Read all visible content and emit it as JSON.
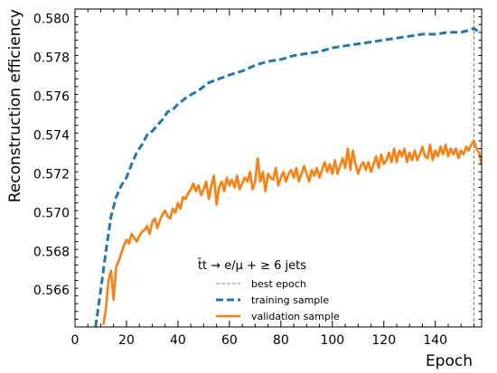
{
  "chart_data": {
    "type": "line",
    "xlabel": "Epoch",
    "ylabel": "Reconstruction efficiency",
    "xlim": [
      0,
      158
    ],
    "ylim": [
      0.5641,
      0.5805
    ],
    "xticks": [
      0,
      20,
      40,
      60,
      80,
      100,
      120,
      140
    ],
    "yticks": [
      0.566,
      0.568,
      0.57,
      0.572,
      0.574,
      0.576,
      0.578,
      0.58
    ],
    "ytick_labels": [
      "0.566",
      "0.568",
      "0.570",
      "0.572",
      "0.574",
      "0.576",
      "0.578",
      "0.580"
    ],
    "grid": false,
    "legend_placement": "lower-center",
    "legend_title": "t̄t → e/μ + ≥ 6 jets",
    "best_epoch": 155,
    "best_epoch_label": "best epoch",
    "colors": {
      "training": "#1f77b4",
      "validation": "#ff7f0e",
      "best_epoch": "#808080"
    },
    "series": [
      {
        "name": "training sample",
        "style": "dashed",
        "x": [
          8,
          10,
          12,
          14,
          16,
          18,
          20,
          22,
          24,
          26,
          28,
          30,
          32,
          34,
          36,
          38,
          40,
          44,
          48,
          52,
          56,
          60,
          65,
          70,
          75,
          80,
          85,
          90,
          95,
          100,
          105,
          110,
          115,
          120,
          125,
          130,
          135,
          140,
          145,
          150,
          153,
          155,
          156,
          158
        ],
        "y": [
          0.5641,
          0.566,
          0.568,
          0.5698,
          0.5708,
          0.5714,
          0.5718,
          0.5725,
          0.5731,
          0.5735,
          0.574,
          0.5742,
          0.5745,
          0.5748,
          0.5752,
          0.5753,
          0.5756,
          0.576,
          0.5763,
          0.5767,
          0.5769,
          0.5771,
          0.5773,
          0.5776,
          0.5778,
          0.5779,
          0.5781,
          0.5782,
          0.5783,
          0.5785,
          0.5786,
          0.5787,
          0.5788,
          0.5789,
          0.579,
          0.5791,
          0.5792,
          0.5792,
          0.5793,
          0.5793,
          0.5794,
          0.5795,
          0.5794,
          0.5793
        ]
      },
      {
        "name": "validation sample",
        "style": "solid",
        "x": [
          11,
          12,
          13,
          14,
          15,
          16,
          17,
          18,
          19,
          20,
          21,
          22,
          23,
          24,
          25,
          26,
          27,
          28,
          29,
          30,
          31,
          32,
          33,
          34,
          35,
          36,
          37,
          38,
          39,
          40,
          41,
          42,
          43,
          44,
          45,
          46,
          47,
          48,
          49,
          50,
          51,
          52,
          53,
          54,
          55,
          56,
          57,
          58,
          59,
          60,
          61,
          62,
          63,
          64,
          65,
          66,
          67,
          68,
          69,
          70,
          71,
          72,
          73,
          74,
          75,
          76,
          77,
          78,
          79,
          80,
          81,
          82,
          83,
          84,
          85,
          86,
          87,
          88,
          89,
          90,
          91,
          92,
          93,
          94,
          95,
          96,
          97,
          98,
          99,
          100,
          101,
          102,
          103,
          104,
          105,
          106,
          107,
          108,
          109,
          110,
          111,
          112,
          113,
          114,
          115,
          116,
          117,
          118,
          119,
          120,
          121,
          122,
          123,
          124,
          125,
          126,
          127,
          128,
          129,
          130,
          131,
          132,
          133,
          134,
          135,
          136,
          137,
          138,
          139,
          140,
          141,
          142,
          143,
          144,
          145,
          146,
          147,
          148,
          149,
          150,
          151,
          152,
          153,
          154,
          155,
          156,
          157,
          158
        ],
        "y": [
          0.5642,
          0.565,
          0.5665,
          0.567,
          0.5655,
          0.5672,
          0.5675,
          0.5679,
          0.5683,
          0.5686,
          0.5684,
          0.5689,
          0.5687,
          0.5685,
          0.5688,
          0.569,
          0.5691,
          0.5693,
          0.5689,
          0.5695,
          0.5697,
          0.5692,
          0.5696,
          0.5699,
          0.5701,
          0.5698,
          0.5697,
          0.5702,
          0.57,
          0.5705,
          0.5702,
          0.5708,
          0.5707,
          0.571,
          0.5712,
          0.5715,
          0.5711,
          0.5714,
          0.5709,
          0.5712,
          0.5716,
          0.5707,
          0.5714,
          0.5719,
          0.5704,
          0.5713,
          0.5716,
          0.5711,
          0.5718,
          0.5714,
          0.5717,
          0.5713,
          0.5719,
          0.5712,
          0.5715,
          0.5718,
          0.5716,
          0.5721,
          0.5712,
          0.5716,
          0.5728,
          0.5716,
          0.5721,
          0.5711,
          0.572,
          0.5718,
          0.5717,
          0.5723,
          0.5714,
          0.5718,
          0.5721,
          0.5716,
          0.572,
          0.5722,
          0.5718,
          0.5723,
          0.5716,
          0.572,
          0.5724,
          0.572,
          0.5716,
          0.5722,
          0.5719,
          0.5723,
          0.5718,
          0.5722,
          0.5726,
          0.5721,
          0.5725,
          0.572,
          0.5727,
          0.572,
          0.5724,
          0.5728,
          0.5723,
          0.5733,
          0.5722,
          0.5732,
          0.5725,
          0.572,
          0.5724,
          0.5726,
          0.5722,
          0.5726,
          0.5721,
          0.5725,
          0.5729,
          0.5723,
          0.573,
          0.5725,
          0.5727,
          0.5731,
          0.5726,
          0.5733,
          0.5726,
          0.5732,
          0.5729,
          0.5733,
          0.5726,
          0.5731,
          0.5727,
          0.5732,
          0.5727,
          0.573,
          0.5734,
          0.5729,
          0.5728,
          0.5735,
          0.5727,
          0.5732,
          0.5729,
          0.5734,
          0.573,
          0.5735,
          0.5729,
          0.5733,
          0.573,
          0.5733,
          0.5728,
          0.5732,
          0.573,
          0.5734,
          0.5732,
          0.5735,
          0.5737,
          0.5733,
          0.5731,
          0.5725
        ]
      }
    ]
  }
}
